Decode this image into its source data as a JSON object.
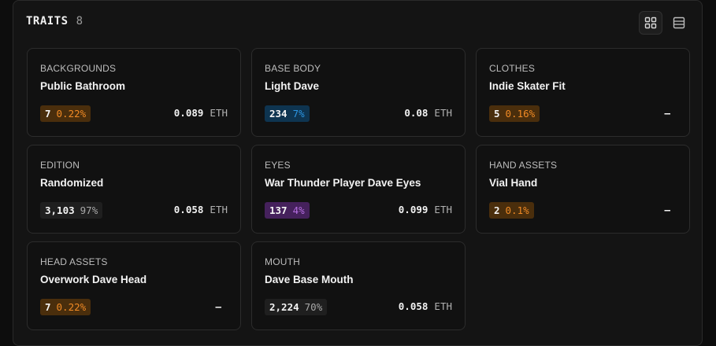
{
  "header": {
    "title": "TRAITS",
    "count": "8"
  },
  "traits": [
    {
      "category": "BACKGROUNDS",
      "value": "Public Bathroom",
      "count": "7",
      "pct": "0.22%",
      "color": "orange",
      "price": "0.089",
      "currency": "ETH"
    },
    {
      "category": "BASE BODY",
      "value": "Light Dave",
      "count": "234",
      "pct": "7%",
      "color": "blue",
      "price": "0.08",
      "currency": "ETH"
    },
    {
      "category": "CLOTHES",
      "value": "Indie Skater Fit",
      "count": "5",
      "pct": "0.16%",
      "color": "orange",
      "price": "–",
      "currency": ""
    },
    {
      "category": "EDITION",
      "value": "Randomized",
      "count": "3,103",
      "pct": "97%",
      "color": "gray",
      "price": "0.058",
      "currency": "ETH"
    },
    {
      "category": "EYES",
      "value": "War Thunder Player Dave Eyes",
      "count": "137",
      "pct": "4%",
      "color": "purple",
      "price": "0.099",
      "currency": "ETH"
    },
    {
      "category": "HAND ASSETS",
      "value": "Vial Hand",
      "count": "2",
      "pct": "0.1%",
      "color": "orange",
      "price": "–",
      "currency": ""
    },
    {
      "category": "HEAD ASSETS",
      "value": "Overwork Dave Head",
      "count": "7",
      "pct": "0.22%",
      "color": "orange",
      "price": "–",
      "currency": ""
    },
    {
      "category": "MOUTH",
      "value": "Dave Base Mouth",
      "count": "2,224",
      "pct": "70%",
      "color": "gray",
      "price": "0.058",
      "currency": "ETH"
    }
  ],
  "icons": {
    "grid_view": "grid-icon",
    "list_view": "list-icon"
  }
}
